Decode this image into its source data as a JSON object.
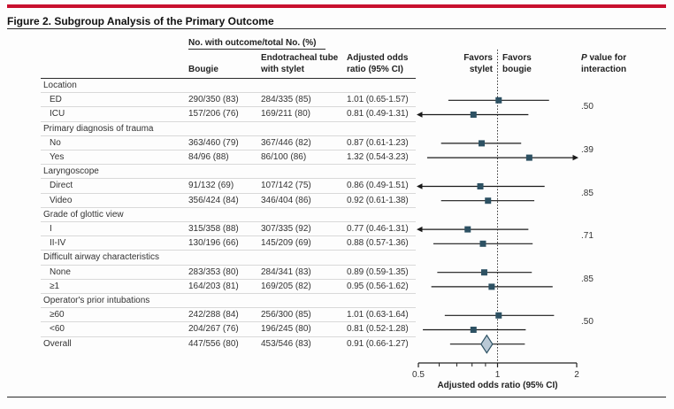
{
  "figure": {
    "title": "Figure 2. Subgroup Analysis of the Primary Outcome"
  },
  "header": {
    "group_col": "No. with outcome/total No. (%)",
    "col_bougie": "Bougie",
    "col_et_line1": "Endotracheal tube",
    "col_et_line2": "with stylet",
    "col_or_line1": "Adjusted odds",
    "col_or_line2": "ratio (95% CI)",
    "favors_left_line1": "Favors",
    "favors_left_line2": "stylet",
    "favors_right_line1": "Favors",
    "favors_right_line2": "bougie",
    "pval_line1": "P value for",
    "pval_line2": "interaction"
  },
  "colors": {
    "accent_red": "#C8102E",
    "marker_teal": "#2D5163",
    "diamond_fill": "#B9C9D6",
    "ci_line": "#1a1a1a",
    "ref_line": "#333333",
    "axis": "#222222"
  },
  "chart_data": {
    "type": "forest",
    "x_scale": "log",
    "x_range": [
      0.5,
      2
    ],
    "ref_line": 1,
    "x_ticks": [
      {
        "v": 0.5,
        "label": "0.5"
      },
      {
        "v": 1,
        "label": "1"
      },
      {
        "v": 2,
        "label": "2"
      }
    ],
    "x_minor_ticks": [
      0.6,
      0.7,
      0.8,
      0.9
    ],
    "xlabel": "Adjusted odds ratio (95% CI)",
    "rows": [
      {
        "type": "section",
        "label": "Location"
      },
      {
        "type": "item",
        "label": "ED",
        "bougie": "290/350 (83)",
        "stylet": "284/335 (85)",
        "or_text": "1.01 (0.65-1.57)",
        "or": 1.01,
        "lo": 0.65,
        "hi": 1.57
      },
      {
        "type": "item",
        "label": "ICU",
        "bougie": "157/206 (76)",
        "stylet": "169/211 (80)",
        "or_text": "0.81 (0.49-1.31)",
        "or": 0.81,
        "lo": 0.49,
        "hi": 1.31
      },
      {
        "type": "section",
        "label": "Primary diagnosis of trauma"
      },
      {
        "type": "item",
        "label": "No",
        "bougie": "363/460 (79)",
        "stylet": "367/446 (82)",
        "or_text": "0.87 (0.61-1.23)",
        "or": 0.87,
        "lo": 0.61,
        "hi": 1.23
      },
      {
        "type": "item",
        "label": "Yes",
        "bougie": "84/96 (88)",
        "stylet": "86/100 (86)",
        "or_text": "1.32 (0.54-3.23)",
        "or": 1.32,
        "lo": 0.54,
        "hi": 3.23
      },
      {
        "type": "section",
        "label": "Laryngoscope"
      },
      {
        "type": "item",
        "label": "Direct",
        "bougie": "91/132 (69)",
        "stylet": "107/142 (75)",
        "or_text": "0.86 (0.49-1.51)",
        "or": 0.86,
        "lo": 0.49,
        "hi": 1.51
      },
      {
        "type": "item",
        "label": "Video",
        "bougie": "356/424 (84)",
        "stylet": "346/404 (86)",
        "or_text": "0.92 (0.61-1.38)",
        "or": 0.92,
        "lo": 0.61,
        "hi": 1.38
      },
      {
        "type": "section",
        "label": "Grade of glottic view"
      },
      {
        "type": "item",
        "label": "I",
        "bougie": "315/358 (88)",
        "stylet": "307/335 (92)",
        "or_text": "0.77 (0.46-1.31)",
        "or": 0.77,
        "lo": 0.46,
        "hi": 1.31
      },
      {
        "type": "item",
        "label": "II-IV",
        "bougie": "130/196 (66)",
        "stylet": "145/209 (69)",
        "or_text": "0.88 (0.57-1.36)",
        "or": 0.88,
        "lo": 0.57,
        "hi": 1.36
      },
      {
        "type": "section",
        "label": "Difficult airway characteristics"
      },
      {
        "type": "item",
        "label": "None",
        "bougie": "283/353 (80)",
        "stylet": "284/341 (83)",
        "or_text": "0.89 (0.59-1.35)",
        "or": 0.89,
        "lo": 0.59,
        "hi": 1.35
      },
      {
        "type": "item",
        "label": "≥1",
        "bougie": "164/203 (81)",
        "stylet": "169/205 (82)",
        "or_text": "0.95 (0.56-1.62)",
        "or": 0.95,
        "lo": 0.56,
        "hi": 1.62
      },
      {
        "type": "section",
        "label": "Operator's prior intubations"
      },
      {
        "type": "item",
        "label": "≥60",
        "bougie": "242/288 (84)",
        "stylet": "256/300 (85)",
        "or_text": "1.01 (0.63-1.64)",
        "or": 1.01,
        "lo": 0.63,
        "hi": 1.64
      },
      {
        "type": "item",
        "label": "<60",
        "bougie": "204/267 (76)",
        "stylet": "196/245 (80)",
        "or_text": "0.81 (0.52-1.28)",
        "or": 0.81,
        "lo": 0.52,
        "hi": 1.28
      },
      {
        "type": "overall",
        "label": "Overall",
        "bougie": "447/556 (80)",
        "stylet": "453/546 (83)",
        "or_text": "0.91 (0.66-1.27)",
        "or": 0.91,
        "lo": 0.66,
        "hi": 1.27,
        "marker": "diamond"
      }
    ],
    "p_values": [
      {
        "text": ".50",
        "rows": [
          1,
          2
        ]
      },
      {
        "text": ".39",
        "rows": [
          4,
          5
        ]
      },
      {
        "text": ".85",
        "rows": [
          7,
          8
        ]
      },
      {
        "text": ".71",
        "rows": [
          10,
          11
        ]
      },
      {
        "text": ".85",
        "rows": [
          13,
          14
        ]
      },
      {
        "text": ".50",
        "rows": [
          16,
          17
        ]
      }
    ]
  }
}
